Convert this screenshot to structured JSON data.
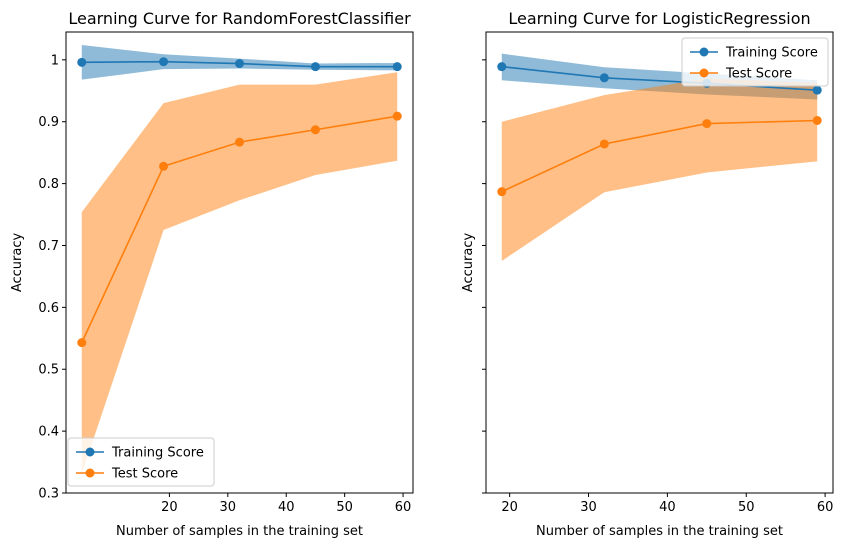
{
  "colors": {
    "training": "#1f77b4",
    "test": "#ff7f0e",
    "training_band": "#1f77b4",
    "test_band": "#ff7f0e",
    "axes": "#000000",
    "background": "#ffffff"
  },
  "chart_data": [
    {
      "type": "line",
      "title": "Learning Curve for RandomForestClassifier",
      "xlabel": "Number of samples in the training set",
      "ylabel": "Accuracy",
      "xlim": [
        2.3,
        61.7
      ],
      "ylim": [
        0.3,
        1.045
      ],
      "xticks": [
        20,
        30,
        40,
        50,
        60
      ],
      "yticks": [
        0.3,
        0.4,
        0.5,
        0.6,
        0.7,
        0.8,
        0.9,
        1.0
      ],
      "show_ytick_labels": true,
      "grid": false,
      "legend": "lower left",
      "series": [
        {
          "name": "Training Score",
          "color_key": "training",
          "x": [
            5,
            19,
            32,
            45,
            59
          ],
          "y": [
            0.996,
            0.997,
            0.994,
            0.989,
            0.989
          ],
          "lower": [
            0.968,
            0.985,
            0.986,
            0.984,
            0.983
          ],
          "upper": [
            1.024,
            1.009,
            1.002,
            0.994,
            0.995
          ]
        },
        {
          "name": "Test Score",
          "color_key": "test",
          "x": [
            5,
            19,
            32,
            45,
            59
          ],
          "y": [
            0.543,
            0.828,
            0.867,
            0.887,
            0.909
          ],
          "lower": [
            0.331,
            0.725,
            0.773,
            0.814,
            0.837
          ],
          "upper": [
            0.754,
            0.93,
            0.96,
            0.96,
            0.98
          ]
        }
      ]
    },
    {
      "type": "line",
      "title": "Learning Curve for LogisticRegression",
      "xlabel": "Number of samples in the training set",
      "ylabel": "Accuracy",
      "xlim": [
        17,
        61
      ],
      "ylim": [
        0.3,
        1.045
      ],
      "xticks": [
        20,
        30,
        40,
        50,
        60
      ],
      "yticks": [
        0.3,
        0.4,
        0.5,
        0.6,
        0.7,
        0.8,
        0.9,
        1.0
      ],
      "show_ytick_labels": false,
      "grid": false,
      "legend": "upper right",
      "series": [
        {
          "name": "Training Score",
          "color_key": "training",
          "x": [
            19,
            32,
            45,
            59
          ],
          "y": [
            0.989,
            0.971,
            0.962,
            0.951
          ],
          "lower": [
            0.967,
            0.954,
            0.944,
            0.936
          ],
          "upper": [
            1.01,
            0.988,
            0.978,
            0.967
          ]
        },
        {
          "name": "Test Score",
          "color_key": "test",
          "x": [
            19,
            32,
            45,
            59
          ],
          "y": [
            0.787,
            0.864,
            0.897,
            0.902
          ],
          "lower": [
            0.675,
            0.786,
            0.818,
            0.836
          ],
          "upper": [
            0.9,
            0.943,
            0.97,
            0.963
          ]
        }
      ]
    }
  ]
}
